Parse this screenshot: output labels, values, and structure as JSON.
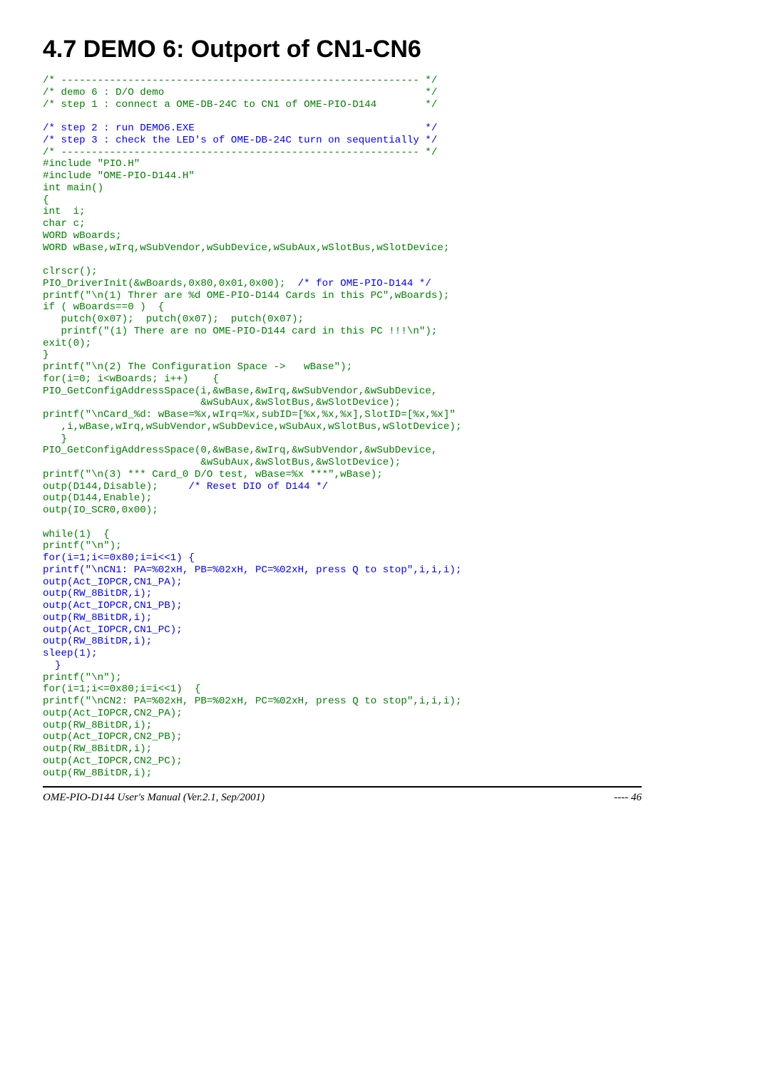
{
  "heading": "4.7   DEMO 6: Outport of CN1-CN6",
  "code": {
    "c01": "/* ----------------------------------------------------------- */",
    "c02": "/* demo 6 : D/O demo                                           */",
    "c03": "/* step 1 : connect a OME-DB-24C to CN1 of OME-PIO-D144        */",
    "c04": "/* step 2 : run DEMO6.EXE                                      */",
    "c05": "/* step 3 : check the LED's of OME-DB-24C turn on sequentially */",
    "c06": "/* ----------------------------------------------------------- */",
    "l01": "#include \"PIO.H\"",
    "l02": "#include \"OME-PIO-D144.H\"",
    "l03": "int main()",
    "l04": "{",
    "l05": "int  i;",
    "l06": "char c;",
    "l07": "WORD wBoards;",
    "l08": "WORD wBase,wIrq,wSubVendor,wSubDevice,wSubAux,wSlotBus,wSlotDevice;",
    "l09": "",
    "l10": "clrscr();",
    "l11a": "PIO_DriverInit(&wBoards,0x80,0x01,0x00);  ",
    "l11b": "/* for OME-PIO-D144 */",
    "l12": "printf(\"\\n(1) Threr are %d OME-PIO-D144 Cards in this PC\",wBoards);",
    "l13": "if ( wBoards==0 )  {",
    "l14": "   putch(0x07);  putch(0x07);  putch(0x07);",
    "l15": "   printf(\"(1) There are no OME-PIO-D144 card in this PC !!!\\n\");",
    "l16": "exit(0);",
    "l17": "}",
    "l18": "printf(\"\\n(2) The Configuration Space ->   wBase\");",
    "l19": "for(i=0; i<wBoards; i++)    {",
    "l20": "PIO_GetConfigAddressSpace(i,&wBase,&wIrq,&wSubVendor,&wSubDevice,",
    "l21": "                          &wSubAux,&wSlotBus,&wSlotDevice);",
    "l22": "printf(\"\\nCard_%d: wBase=%x,wIrq=%x,subID=[%x,%x,%x],SlotID=[%x,%x]\"",
    "l23": "   ,i,wBase,wIrq,wSubVendor,wSubDevice,wSubAux,wSlotBus,wSlotDevice);",
    "l24": "   }",
    "l25": "PIO_GetConfigAddressSpace(0,&wBase,&wIrq,&wSubVendor,&wSubDevice,",
    "l26": "                          &wSubAux,&wSlotBus,&wSlotDevice);",
    "l27": "printf(\"\\n(3) *** Card_0 D/O test, wBase=%x ***\",wBase);",
    "l28a": "outp(D144,Disable);     ",
    "l28b": "/* Reset DIO of D144 */",
    "l29": "outp(D144,Enable);",
    "l30": "outp(IO_SCR0,0x00);",
    "l31": "",
    "l32": "while(1)  {",
    "l33": "printf(\"\\n\");",
    "l34": "for(i=1;i<=0x80;i=i<<1) {",
    "l35": "printf(\"\\nCN1: PA=%02xH, PB=%02xH, PC=%02xH, press Q to stop\",i,i,i);",
    "l36": "outp(Act_IOPCR,CN1_PA);",
    "l37": "outp(RW_8BitDR,i);",
    "l38": "outp(Act_IOPCR,CN1_PB);",
    "l39": "outp(RW_8BitDR,i);",
    "l40": "outp(Act_IOPCR,CN1_PC);",
    "l41": "outp(RW_8BitDR,i);",
    "l42": "sleep(1);",
    "l43": "  }",
    "l44": "printf(\"\\n\");",
    "l45": "for(i=1;i<=0x80;i=i<<1)  {",
    "l46": "printf(\"\\nCN2: PA=%02xH, PB=%02xH, PC=%02xH, press Q to stop\",i,i,i);",
    "l47": "outp(Act_IOPCR,CN2_PA);",
    "l48": "outp(RW_8BitDR,i);",
    "l49": "outp(Act_IOPCR,CN2_PB);",
    "l50": "outp(RW_8BitDR,i);",
    "l51": "outp(Act_IOPCR,CN2_PC);",
    "l52": "outp(RW_8BitDR,i);"
  },
  "footer_left": "OME-PIO-D144 User's Manual  (Ver.2.1, Sep/2001)",
  "footer_right": "----  46"
}
